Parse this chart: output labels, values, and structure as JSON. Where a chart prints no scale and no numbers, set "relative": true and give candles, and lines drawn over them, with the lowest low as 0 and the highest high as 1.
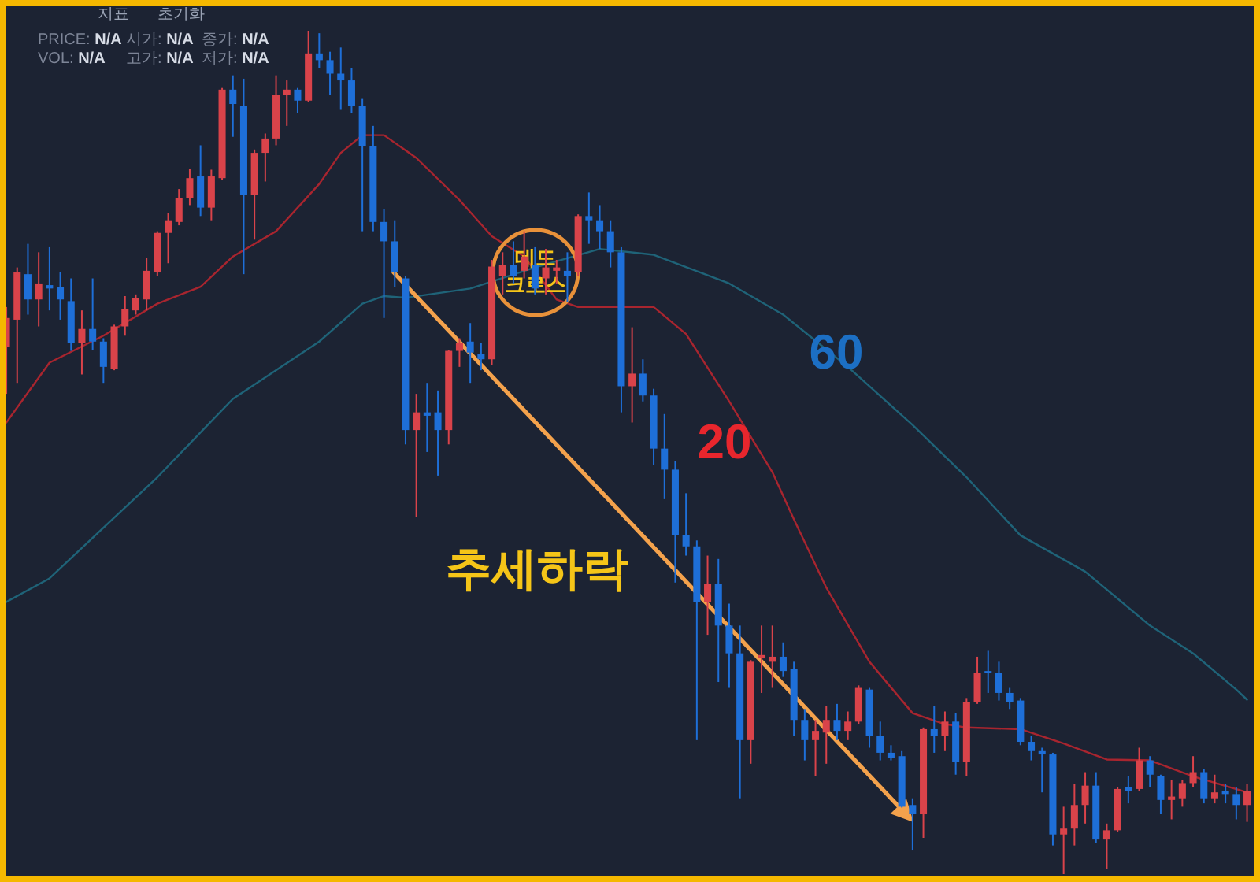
{
  "chart_data": {
    "type": "candlestick",
    "relative": true,
    "categories": [
      null,
      null,
      null,
      null,
      null,
      null,
      null,
      null,
      null,
      null,
      null,
      null,
      null,
      null,
      null,
      null,
      null,
      null,
      null,
      null,
      null,
      null,
      null,
      null,
      null,
      null,
      null,
      null,
      null,
      null,
      null,
      null,
      null,
      null,
      null,
      null,
      null,
      null,
      null,
      null,
      null,
      null,
      null,
      null,
      null,
      null,
      null,
      null,
      null,
      null,
      null,
      null,
      null,
      null,
      null,
      null,
      null,
      null,
      null,
      null,
      null,
      null,
      null,
      null,
      null,
      null,
      null,
      null,
      null,
      null,
      null,
      null,
      null,
      null,
      null,
      null,
      null,
      null,
      null,
      null,
      null,
      null,
      null,
      null,
      null,
      null,
      null,
      null,
      null,
      null,
      null,
      null,
      null,
      null,
      null,
      null,
      null,
      null,
      null,
      null,
      null,
      null,
      null,
      null,
      null,
      null,
      null,
      null,
      null,
      null,
      null,
      null,
      null,
      null,
      null,
      null
    ],
    "ohlc": [
      [
        0.626,
        0.673,
        0.57,
        0.66
      ],
      [
        0.658,
        0.72,
        0.583,
        0.714
      ],
      [
        0.712,
        0.748,
        0.664,
        0.682
      ],
      [
        0.682,
        0.738,
        0.65,
        0.701
      ],
      [
        0.699,
        0.744,
        0.669,
        0.695
      ],
      [
        0.697,
        0.714,
        0.658,
        0.682
      ],
      [
        0.68,
        0.707,
        0.621,
        0.63
      ],
      [
        0.63,
        0.669,
        0.593,
        0.647
      ],
      [
        0.647,
        0.707,
        0.622,
        0.632
      ],
      [
        0.632,
        0.636,
        0.583,
        0.602
      ],
      [
        0.6,
        0.652,
        0.598,
        0.65
      ],
      [
        0.65,
        0.686,
        0.639,
        0.671
      ],
      [
        0.669,
        0.688,
        0.664,
        0.684
      ],
      [
        0.682,
        0.731,
        0.669,
        0.716
      ],
      [
        0.714,
        0.763,
        0.71,
        0.761
      ],
      [
        0.761,
        0.785,
        0.725,
        0.776
      ],
      [
        0.774,
        0.813,
        0.77,
        0.802
      ],
      [
        0.802,
        0.837,
        0.794,
        0.826
      ],
      [
        0.828,
        0.865,
        0.781,
        0.791
      ],
      [
        0.791,
        0.836,
        0.776,
        0.828
      ],
      [
        0.826,
        0.933,
        0.824,
        0.931
      ],
      [
        0.931,
        0.948,
        0.875,
        0.914
      ],
      [
        0.912,
        0.944,
        0.712,
        0.806
      ],
      [
        0.806,
        0.86,
        0.753,
        0.856
      ],
      [
        0.856,
        0.879,
        0.822,
        0.873
      ],
      [
        0.873,
        0.948,
        0.865,
        0.925
      ],
      [
        0.925,
        0.942,
        0.888,
        0.931
      ],
      [
        0.931,
        0.933,
        0.903,
        0.918
      ],
      [
        0.918,
        1.0,
        0.916,
        0.974
      ],
      [
        0.974,
        0.998,
        0.957,
        0.966
      ],
      [
        0.966,
        0.976,
        0.925,
        0.95
      ],
      [
        0.95,
        0.981,
        0.907,
        0.942
      ],
      [
        0.942,
        0.957,
        0.903,
        0.912
      ],
      [
        0.912,
        0.92,
        0.763,
        0.864
      ],
      [
        0.864,
        0.888,
        0.763,
        0.774
      ],
      [
        0.774,
        0.789,
        0.66,
        0.751
      ],
      [
        0.751,
        0.776,
        0.697,
        0.714
      ],
      [
        0.707,
        0.71,
        0.51,
        0.527
      ],
      [
        0.527,
        0.57,
        0.424,
        0.548
      ],
      [
        0.548,
        0.583,
        0.501,
        0.544
      ],
      [
        0.548,
        0.574,
        0.473,
        0.527
      ],
      [
        0.527,
        0.622,
        0.51,
        0.621
      ],
      [
        0.621,
        0.636,
        0.602,
        0.63
      ],
      [
        0.632,
        0.654,
        0.583,
        0.619
      ],
      [
        0.617,
        0.63,
        0.598,
        0.611
      ],
      [
        0.611,
        0.729,
        0.604,
        0.721
      ],
      [
        0.71,
        0.738,
        0.688,
        0.723
      ],
      [
        0.723,
        0.751,
        0.701,
        0.71
      ],
      [
        0.716,
        0.763,
        0.707,
        0.733
      ],
      [
        0.723,
        0.744,
        0.688,
        0.695
      ],
      [
        0.707,
        0.742,
        0.688,
        0.72
      ],
      [
        0.716,
        0.729,
        0.701,
        0.72
      ],
      [
        0.716,
        0.738,
        0.679,
        0.71
      ],
      [
        0.714,
        0.783,
        0.71,
        0.781
      ],
      [
        0.781,
        0.809,
        0.748,
        0.776
      ],
      [
        0.776,
        0.794,
        0.742,
        0.763
      ],
      [
        0.763,
        0.776,
        0.72,
        0.738
      ],
      [
        0.738,
        0.744,
        0.548,
        0.579
      ],
      [
        0.579,
        0.649,
        0.536,
        0.594
      ],
      [
        0.594,
        0.611,
        0.561,
        0.568
      ],
      [
        0.568,
        0.576,
        0.486,
        0.505
      ],
      [
        0.505,
        0.546,
        0.445,
        0.48
      ],
      [
        0.48,
        0.49,
        0.346,
        0.402
      ],
      [
        0.402,
        0.452,
        0.378,
        0.389
      ],
      [
        0.389,
        0.396,
        0.159,
        0.323
      ],
      [
        0.323,
        0.378,
        0.284,
        0.344
      ],
      [
        0.344,
        0.374,
        0.228,
        0.295
      ],
      [
        0.295,
        0.321,
        0.221,
        0.262
      ],
      [
        0.262,
        0.295,
        0.09,
        0.159
      ],
      [
        0.159,
        0.254,
        0.131,
        0.252
      ],
      [
        0.256,
        0.295,
        0.215,
        0.26
      ],
      [
        0.252,
        0.295,
        0.221,
        0.258
      ],
      [
        0.258,
        0.275,
        0.234,
        0.241
      ],
      [
        0.243,
        0.252,
        0.164,
        0.183
      ],
      [
        0.183,
        0.196,
        0.135,
        0.159
      ],
      [
        0.159,
        0.183,
        0.116,
        0.17
      ],
      [
        0.168,
        0.2,
        0.131,
        0.183
      ],
      [
        0.183,
        0.202,
        0.159,
        0.17
      ],
      [
        0.17,
        0.193,
        0.159,
        0.181
      ],
      [
        0.181,
        0.224,
        0.178,
        0.221
      ],
      [
        0.219,
        0.221,
        0.15,
        0.164
      ],
      [
        0.164,
        0.181,
        0.135,
        0.144
      ],
      [
        0.144,
        0.153,
        0.135,
        0.138
      ],
      [
        0.14,
        0.146,
        0.079,
        0.08
      ],
      [
        0.082,
        0.09,
        0.028,
        0.071
      ],
      [
        0.071,
        0.174,
        0.043,
        0.172
      ],
      [
        0.172,
        0.2,
        0.144,
        0.164
      ],
      [
        0.164,
        0.193,
        0.146,
        0.181
      ],
      [
        0.181,
        0.191,
        0.118,
        0.133
      ],
      [
        0.133,
        0.209,
        0.116,
        0.204
      ],
      [
        0.204,
        0.258,
        0.202,
        0.239
      ],
      [
        0.241,
        0.265,
        0.215,
        0.239
      ],
      [
        0.239,
        0.252,
        0.206,
        0.215
      ],
      [
        0.215,
        0.221,
        0.196,
        0.204
      ],
      [
        0.206,
        0.209,
        0.153,
        0.157
      ],
      [
        0.157,
        0.164,
        0.135,
        0.146
      ],
      [
        0.146,
        0.15,
        0.097,
        0.142
      ],
      [
        0.142,
        0.144,
        0.034,
        0.047
      ],
      [
        0.047,
        0.08,
        0.0,
        0.054
      ],
      [
        0.054,
        0.107,
        0.034,
        0.082
      ],
      [
        0.082,
        0.121,
        0.06,
        0.105
      ],
      [
        0.105,
        0.121,
        0.037,
        0.041
      ],
      [
        0.041,
        0.06,
        0.006,
        0.052
      ],
      [
        0.052,
        0.103,
        0.05,
        0.101
      ],
      [
        0.103,
        0.116,
        0.084,
        0.099
      ],
      [
        0.101,
        0.15,
        0.099,
        0.135
      ],
      [
        0.135,
        0.14,
        0.103,
        0.118
      ],
      [
        0.116,
        0.118,
        0.071,
        0.088
      ],
      [
        0.088,
        0.112,
        0.065,
        0.092
      ],
      [
        0.09,
        0.112,
        0.08,
        0.108
      ],
      [
        0.108,
        0.14,
        0.103,
        0.121
      ],
      [
        0.121,
        0.125,
        0.084,
        0.09
      ],
      [
        0.09,
        0.118,
        0.084,
        0.097
      ],
      [
        0.099,
        0.107,
        0.084,
        0.095
      ],
      [
        0.095,
        0.103,
        0.065,
        0.082
      ],
      [
        0.082,
        0.107,
        0.062,
        0.099
      ]
    ],
    "colors": [
      "#d9434a",
      "#d9434a",
      "#1e6fd8",
      "#d9434a",
      "#1e6fd8",
      "#1e6fd8",
      "#1e6fd8",
      "#d9434a",
      "#1e6fd8",
      "#1e6fd8",
      "#d9434a",
      "#d9434a",
      "#d9434a",
      "#d9434a",
      "#d9434a",
      "#d9434a",
      "#d9434a",
      "#d9434a",
      "#1e6fd8",
      "#d9434a",
      "#d9434a",
      "#1e6fd8",
      "#1e6fd8",
      "#d9434a",
      "#d9434a",
      "#d9434a",
      "#d9434a",
      "#1e6fd8",
      "#d9434a",
      "#1e6fd8",
      "#1e6fd8",
      "#1e6fd8",
      "#1e6fd8",
      "#1e6fd8",
      "#1e6fd8",
      "#1e6fd8",
      "#1e6fd8",
      "#1e6fd8",
      "#d9434a",
      "#1e6fd8",
      "#1e6fd8",
      "#d9434a",
      "#d9434a",
      "#1e6fd8",
      "#1e6fd8",
      "#d9434a",
      "#d9434a",
      "#1e6fd8",
      "#d9434a",
      "#1e6fd8",
      "#d9434a",
      "#d9434a",
      "#1e6fd8",
      "#d9434a",
      "#1e6fd8",
      "#1e6fd8",
      "#1e6fd8",
      "#1e6fd8",
      "#d9434a",
      "#1e6fd8",
      "#1e6fd8",
      "#1e6fd8",
      "#1e6fd8",
      "#1e6fd8",
      "#1e6fd8",
      "#d9434a",
      "#1e6fd8",
      "#1e6fd8",
      "#1e6fd8",
      "#d9434a",
      "#d9434a",
      "#d9434a",
      "#1e6fd8",
      "#1e6fd8",
      "#1e6fd8",
      "#d9434a",
      "#d9434a",
      "#1e6fd8",
      "#d9434a",
      "#d9434a",
      "#1e6fd8",
      "#1e6fd8",
      "#1e6fd8",
      "#1e6fd8",
      "#1e6fd8",
      "#d9434a",
      "#1e6fd8",
      "#d9434a",
      "#1e6fd8",
      "#d9434a",
      "#d9434a",
      "#1e6fd8",
      "#1e6fd8",
      "#1e6fd8",
      "#1e6fd8",
      "#1e6fd8",
      "#1e6fd8",
      "#1e6fd8",
      "#d9434a",
      "#d9434a",
      "#d9434a",
      "#1e6fd8",
      "#d9434a",
      "#d9434a",
      "#1e6fd8",
      "#d9434a",
      "#1e6fd8",
      "#1e6fd8",
      "#d9434a",
      "#d9434a",
      "#d9434a",
      "#1e6fd8",
      "#d9434a",
      "#1e6fd8",
      "#1e6fd8",
      "#d9434a"
    ],
    "series": [
      {
        "name": "20",
        "type": "line",
        "color": "#a8252f",
        "values": [
          0.536,
          null,
          null,
          null,
          0.607,
          null,
          null,
          null,
          null,
          0.639,
          null,
          null,
          null,
          null,
          0.677,
          null,
          null,
          null,
          0.697,
          null,
          null,
          0.733,
          null,
          null,
          null,
          0.763,
          null,
          null,
          null,
          0.819,
          null,
          0.856,
          null,
          0.877,
          null,
          0.877,
          null,
          null,
          0.85,
          null,
          null,
          null,
          0.8,
          null,
          null,
          0.757,
          null,
          null,
          0.733,
          null,
          null,
          0.682,
          null,
          0.673,
          null,
          null,
          null,
          null,
          null,
          null,
          0.673,
          null,
          null,
          0.641,
          null,
          null,
          null,
          0.561,
          null,
          null,
          null,
          0.477,
          null,
          0.421,
          null,
          null,
          0.34,
          null,
          null,
          null,
          0.252,
          null,
          null,
          null,
          0.191,
          null,
          null,
          0.178,
          null,
          0.174,
          null,
          null,
          null,
          null,
          0.172,
          null,
          null,
          null,
          0.155,
          null,
          null,
          null,
          0.136,
          null,
          null,
          null,
          0.135,
          null,
          null,
          null,
          0.116,
          null,
          null,
          null,
          null,
          0.097
        ]
      },
      {
        "name": "60",
        "type": "line",
        "color": "#1f6378",
        "values": [
          0.323,
          null,
          null,
          null,
          0.351,
          null,
          null,
          null,
          null,
          0.411,
          null,
          null,
          null,
          null,
          0.471,
          null,
          null,
          null,
          null,
          null,
          null,
          0.564,
          null,
          null,
          null,
          null,
          null,
          null,
          null,
          0.632,
          null,
          null,
          null,
          0.677,
          null,
          0.686,
          null,
          0.684,
          null,
          null,
          null,
          null,
          null,
          0.695,
          null,
          null,
          null,
          null,
          null,
          0.72,
          null,
          null,
          null,
          null,
          null,
          0.742,
          null,
          null,
          null,
          null,
          0.735,
          null,
          null,
          null,
          null,
          null,
          null,
          0.701,
          null,
          null,
          null,
          null,
          0.664,
          null,
          null,
          null,
          null,
          null,
          0.602,
          null,
          null,
          null,
          null,
          null,
          0.533,
          null,
          null,
          null,
          null,
          0.471,
          null,
          null,
          null,
          null,
          0.402,
          null,
          null,
          null,
          null,
          null,
          0.359,
          null,
          null,
          null,
          null,
          null,
          0.295,
          null,
          null,
          null,
          0.262,
          null,
          null,
          null,
          0.219,
          0.207
        ]
      }
    ],
    "annotations": [
      "지표",
      "초기화",
      "PRICE: N/A",
      "시가: N/A",
      "종가: N/A",
      "VOL: N/A",
      "고가: N/A",
      "저가: N/A",
      "데드 크로스",
      "추세하락"
    ]
  }
}
